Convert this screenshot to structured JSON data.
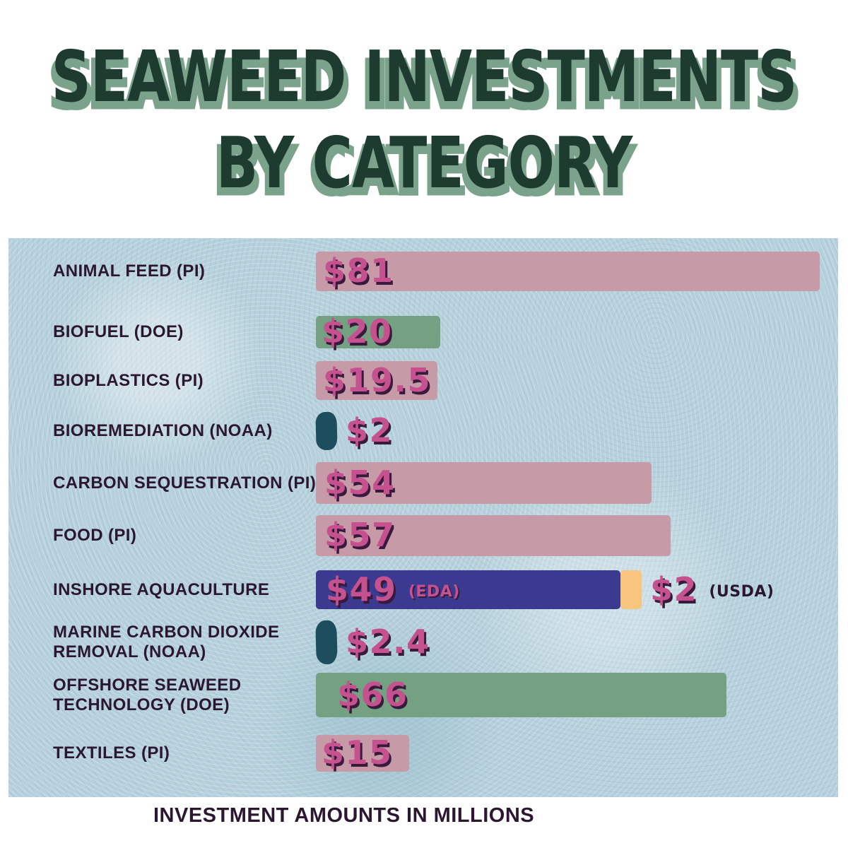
{
  "title": {
    "line1": "SEAWEED INVESTMENTS",
    "line2": "BY CATEGORY"
  },
  "footer": "INVESTMENT AMOUNTS IN MILLIONS",
  "colors": {
    "title_text": "#1e3b30",
    "title_shadow": "#7ba38c",
    "chart_background": "#b6d1db",
    "label_text": "#2b1830",
    "value_text": "#c5518f",
    "value_shadow": "#371a3c",
    "pink": "#c69aa7",
    "green": "#75a183",
    "teal": "#1d4e5e",
    "indigo": "#3b3a90",
    "orange": "#f7c57e"
  },
  "chart_data": {
    "type": "bar",
    "orientation": "horizontal",
    "title": "SEAWEED INVESTMENTS BY CATEGORY",
    "note": "INVESTMENT AMOUNTS IN MILLIONS",
    "unit": "USD millions",
    "xlim": [
      0,
      81
    ],
    "grid": false,
    "legend": "none",
    "rows": [
      {
        "label": "ANIMAL FEED  (PI)",
        "segments": [
          {
            "value": 81,
            "display": "$81",
            "color_key": "pink",
            "value_placement": "inside"
          }
        ]
      },
      {
        "label": "BIOFUEL (DOE)",
        "segments": [
          {
            "value": 20,
            "display": "$20",
            "color_key": "green",
            "value_placement": "inside"
          }
        ]
      },
      {
        "label": "BIOPLASTICS  (PI)",
        "segments": [
          {
            "value": 19.5,
            "display": "$19.5",
            "color_key": "pink",
            "value_placement": "inside"
          }
        ]
      },
      {
        "label": "BIOREMEDIATION (NOAA)",
        "segments": [
          {
            "value": 2,
            "display": "$2",
            "color_key": "teal",
            "value_placement": "outside"
          }
        ]
      },
      {
        "label": "CARBON SEQUESTRATION  (PI)",
        "segments": [
          {
            "value": 54,
            "display": "$54",
            "color_key": "pink",
            "value_placement": "inside"
          }
        ]
      },
      {
        "label": "FOOD (PI)",
        "segments": [
          {
            "value": 57,
            "display": "$57",
            "color_key": "pink",
            "value_placement": "inside"
          }
        ]
      },
      {
        "label": "INSHORE AQUACULTURE",
        "segments": [
          {
            "value": 49,
            "display": "$49",
            "annotation": "(EDA)",
            "annotation_style": "pink",
            "color_key": "indigo",
            "value_placement": "inside"
          },
          {
            "value": 2,
            "display": "$2",
            "annotation": "(USDA)",
            "annotation_style": "dark",
            "color_key": "orange",
            "value_placement": "outside"
          }
        ]
      },
      {
        "label": "MARINE CARBON DIOXIDE\nREMOVAL (NOAA)",
        "segments": [
          {
            "value": 2.4,
            "display": "$2.4",
            "color_key": "teal",
            "value_placement": "outside"
          }
        ]
      },
      {
        "label": "OFFSHORE SEAWEED\nTECHNOLOGY (DOE)",
        "segments": [
          {
            "value": 66,
            "display": "$66",
            "color_key": "green",
            "value_placement": "inside"
          }
        ]
      },
      {
        "label": "TEXTILES (PI)",
        "segments": [
          {
            "value": 15,
            "display": "$15",
            "color_key": "pink",
            "value_placement": "inside"
          }
        ]
      }
    ]
  }
}
